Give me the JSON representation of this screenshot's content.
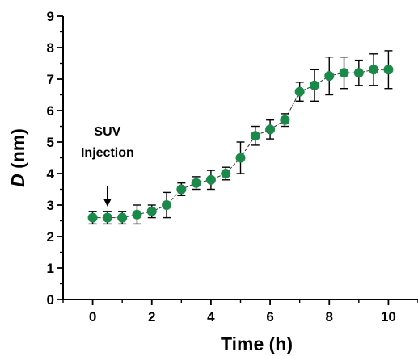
{
  "chart_data": {
    "type": "scatter",
    "xlabel": "Time (h)",
    "ylabel_italic": "D",
    "ylabel_rest": " (nm)",
    "xlim": [
      -1,
      11
    ],
    "ylim": [
      0,
      9
    ],
    "x_ticks": [
      0,
      2,
      4,
      6,
      8,
      10
    ],
    "y_ticks": [
      0,
      1,
      2,
      3,
      4,
      5,
      6,
      7,
      8,
      9
    ],
    "x_tick_labels": [
      "0",
      "2",
      "4",
      "6",
      "8",
      "10"
    ],
    "y_tick_labels": [
      "0",
      "1",
      "2",
      "3",
      "4",
      "5",
      "6",
      "7",
      "8",
      "9"
    ],
    "grid": false,
    "marker_color": "#1a8a4a",
    "line_style": "thin dashed connecting line",
    "series": [
      {
        "x": [
          0,
          0.5,
          1,
          1.5,
          2,
          2.5,
          3,
          3.5,
          4,
          4.5,
          5,
          5.5,
          6,
          6.5,
          7,
          7.5,
          8,
          8.5,
          9,
          9.5,
          10
        ],
        "y": [
          2.6,
          2.6,
          2.6,
          2.7,
          2.8,
          3.0,
          3.5,
          3.7,
          3.8,
          4.0,
          4.5,
          5.2,
          5.4,
          5.7,
          6.6,
          6.8,
          7.1,
          7.2,
          7.2,
          7.3,
          7.3
        ],
        "err": [
          0.2,
          0.2,
          0.2,
          0.3,
          0.2,
          0.4,
          0.2,
          0.2,
          0.3,
          0.2,
          0.5,
          0.3,
          0.3,
          0.2,
          0.3,
          0.5,
          0.6,
          0.5,
          0.4,
          0.5,
          0.6
        ]
      }
    ],
    "annotation": {
      "lines": [
        "SUV",
        "Injection"
      ],
      "x": 0.5,
      "arrow_from_y": 3.6,
      "arrow_to_y": 2.95
    }
  }
}
